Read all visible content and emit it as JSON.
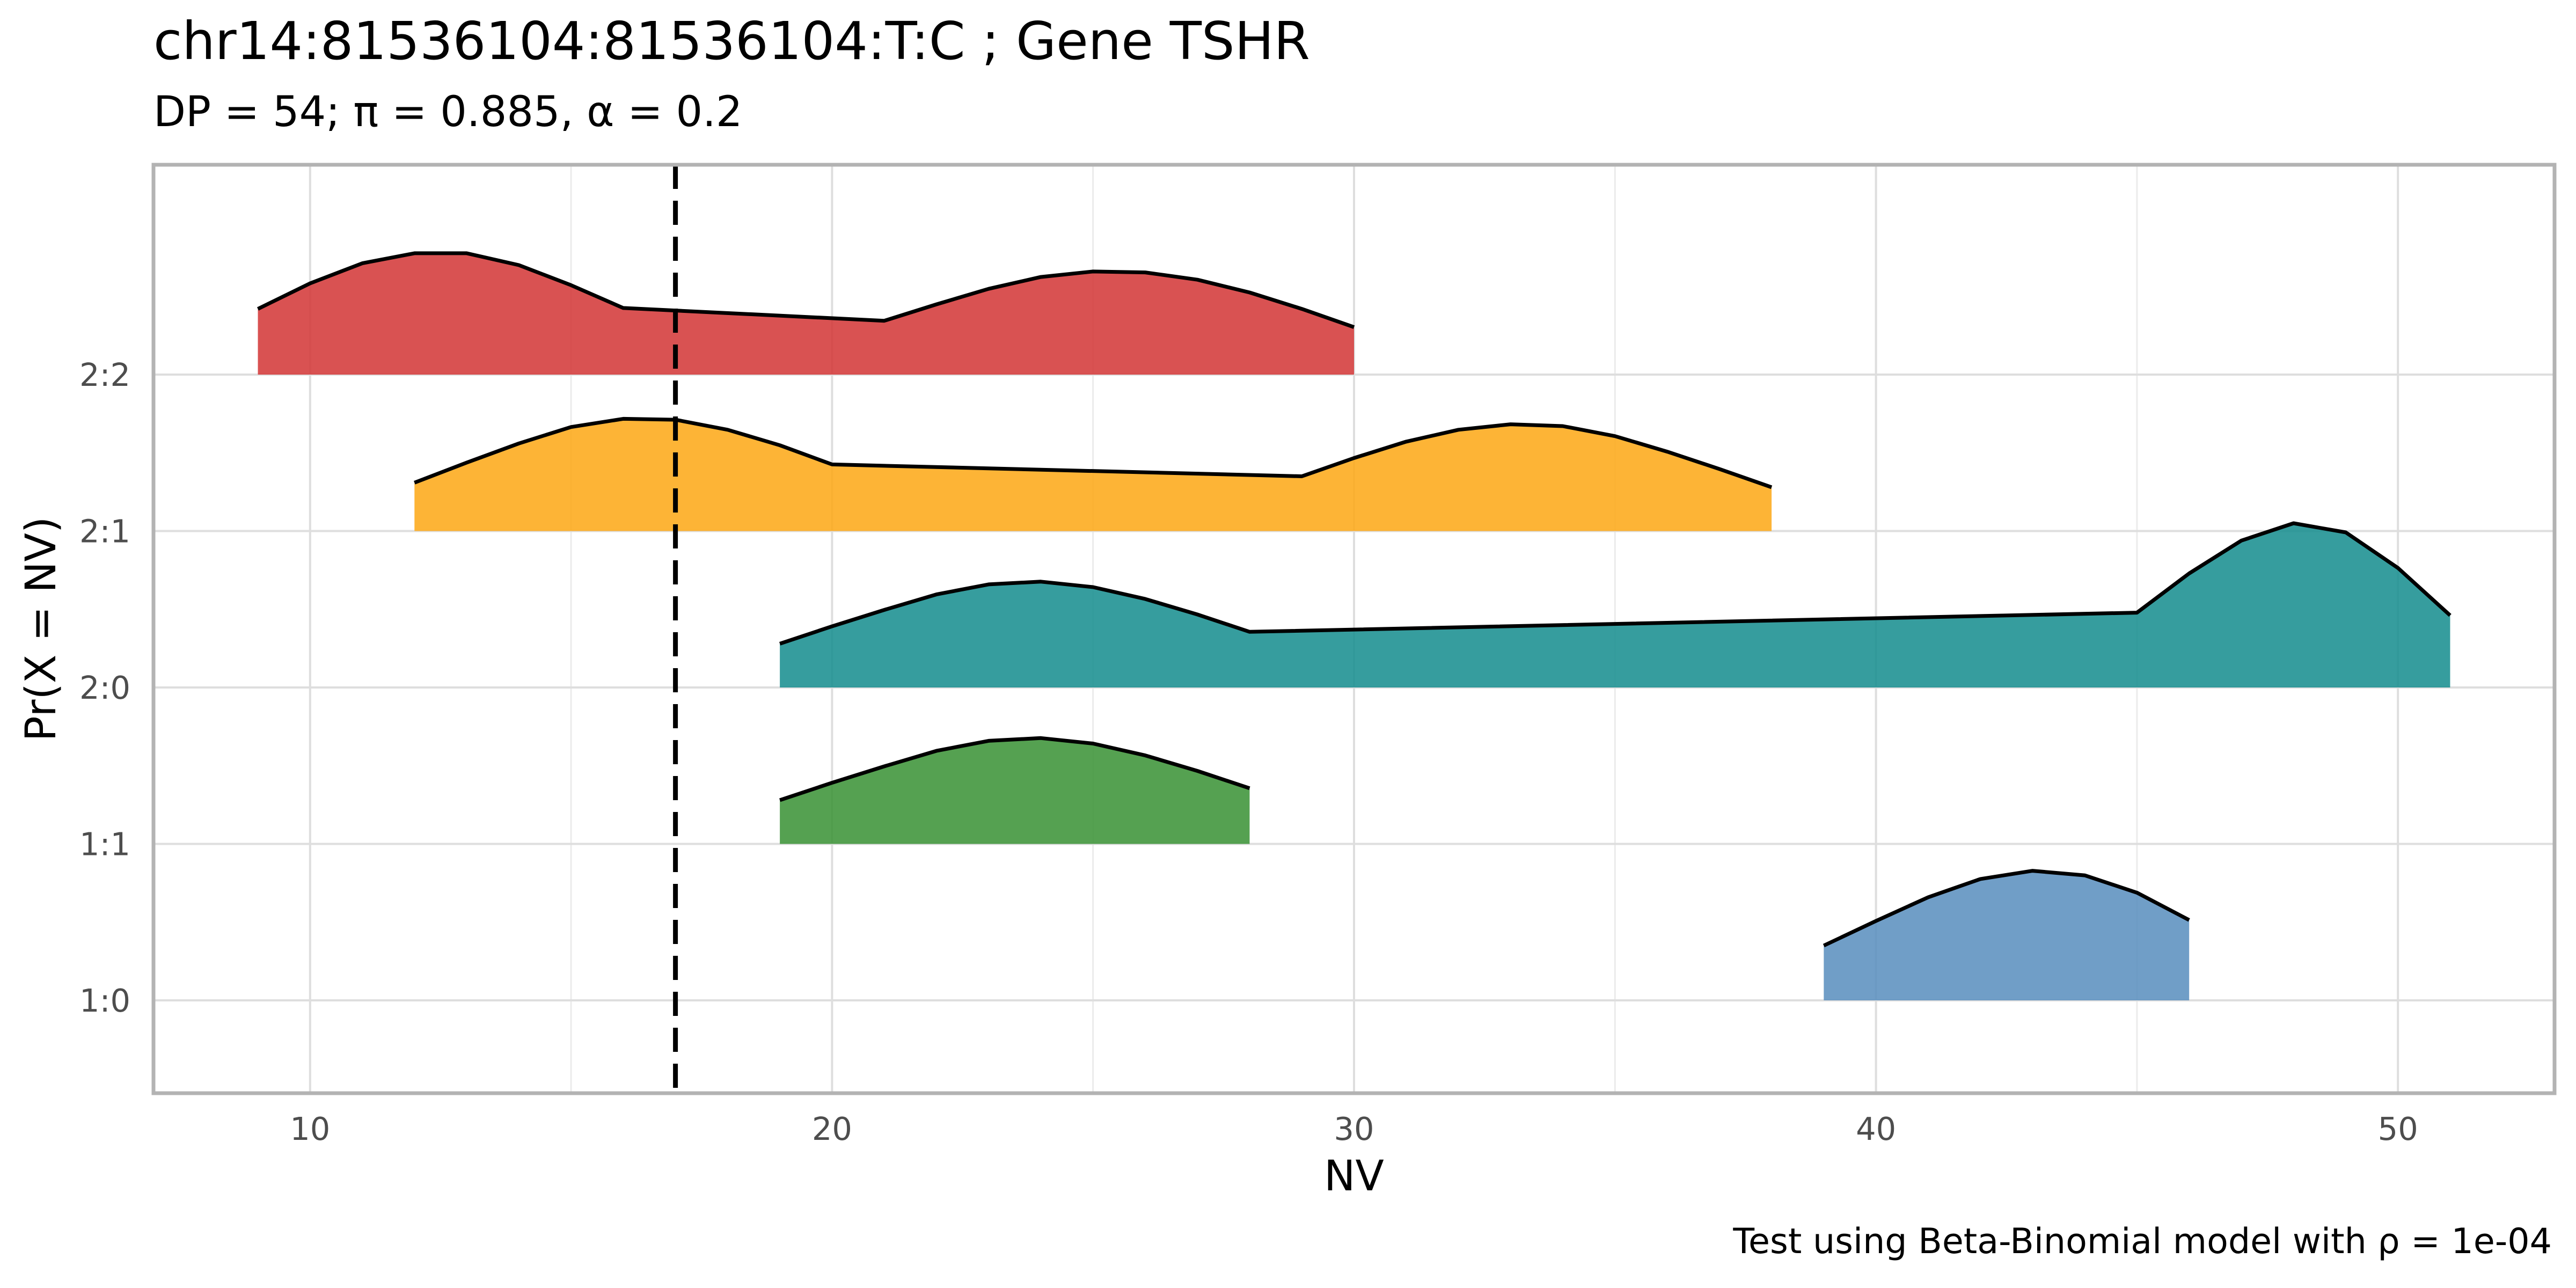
{
  "chart_data": {
    "type": "area",
    "title": "chr14:81536104:81536104:T:C ; Gene TSHR",
    "subtitle": "DP = 54; π = 0.885,  α = 0.2",
    "xlabel": "NV",
    "ylabel": "Pr(X = NV)",
    "caption": "Test using Beta-Binomial model with ρ = 1e-04",
    "xlim": [
      7,
      53
    ],
    "x_ticks": [
      10,
      20,
      30,
      40,
      50
    ],
    "x_tick_labels": [
      "10",
      "20",
      "30",
      "40",
      "50"
    ],
    "y_categories": [
      "1:0",
      "1:1",
      "2:0",
      "2:1",
      "2:2"
    ],
    "grid": true,
    "legend": "none",
    "vline": {
      "x": 17,
      "style": "dashed",
      "color": "#000000"
    },
    "series": [
      {
        "category": "2:2",
        "color": "#d43a3a",
        "points": [
          [
            9,
            0.72
          ],
          [
            10,
            1.0
          ],
          [
            11,
            1.22
          ],
          [
            12,
            1.33
          ],
          [
            13,
            1.33
          ],
          [
            14,
            1.2
          ],
          [
            15,
            0.98
          ],
          [
            16,
            0.73
          ],
          [
            21,
            0.59
          ],
          [
            22,
            0.77
          ],
          [
            23,
            0.94
          ],
          [
            24,
            1.07
          ],
          [
            25,
            1.13
          ],
          [
            26,
            1.12
          ],
          [
            27,
            1.04
          ],
          [
            28,
            0.9
          ],
          [
            29,
            0.72
          ],
          [
            30,
            0.52
          ]
        ]
      },
      {
        "category": "2:1",
        "color": "#fdaa1a",
        "points": [
          [
            12,
            0.53
          ],
          [
            13,
            0.75
          ],
          [
            14,
            0.96
          ],
          [
            15,
            1.14
          ],
          [
            16,
            1.23
          ],
          [
            17,
            1.22
          ],
          [
            18,
            1.11
          ],
          [
            19,
            0.94
          ],
          [
            20,
            0.73
          ],
          [
            29,
            0.6
          ],
          [
            30,
            0.8
          ],
          [
            31,
            0.98
          ],
          [
            32,
            1.11
          ],
          [
            33,
            1.17
          ],
          [
            34,
            1.15
          ],
          [
            35,
            1.04
          ],
          [
            36,
            0.87
          ],
          [
            37,
            0.68
          ],
          [
            38,
            0.48
          ]
        ]
      },
      {
        "category": "2:0",
        "color": "#1a9091",
        "points": [
          [
            19,
            0.48
          ],
          [
            20,
            0.67
          ],
          [
            21,
            0.85
          ],
          [
            22,
            1.02
          ],
          [
            23,
            1.13
          ],
          [
            24,
            1.16
          ],
          [
            25,
            1.1
          ],
          [
            26,
            0.97
          ],
          [
            27,
            0.8
          ],
          [
            28,
            0.61
          ],
          [
            45,
            0.82
          ],
          [
            46,
            1.25
          ],
          [
            47,
            1.61
          ],
          [
            48,
            1.8
          ],
          [
            49,
            1.7
          ],
          [
            50,
            1.31
          ],
          [
            51,
            0.79
          ]
        ]
      },
      {
        "category": "1:1",
        "color": "#3d9439",
        "points": [
          [
            19,
            0.48
          ],
          [
            20,
            0.67
          ],
          [
            21,
            0.85
          ],
          [
            22,
            1.02
          ],
          [
            23,
            1.13
          ],
          [
            24,
            1.16
          ],
          [
            25,
            1.1
          ],
          [
            26,
            0.97
          ],
          [
            27,
            0.8
          ],
          [
            28,
            0.61
          ]
        ]
      },
      {
        "category": "1:0",
        "color": "#5c91bf",
        "points": [
          [
            39,
            0.6
          ],
          [
            40,
            0.87
          ],
          [
            41,
            1.13
          ],
          [
            42,
            1.33
          ],
          [
            43,
            1.42
          ],
          [
            44,
            1.37
          ],
          [
            45,
            1.18
          ],
          [
            46,
            0.88
          ]
        ]
      }
    ]
  }
}
